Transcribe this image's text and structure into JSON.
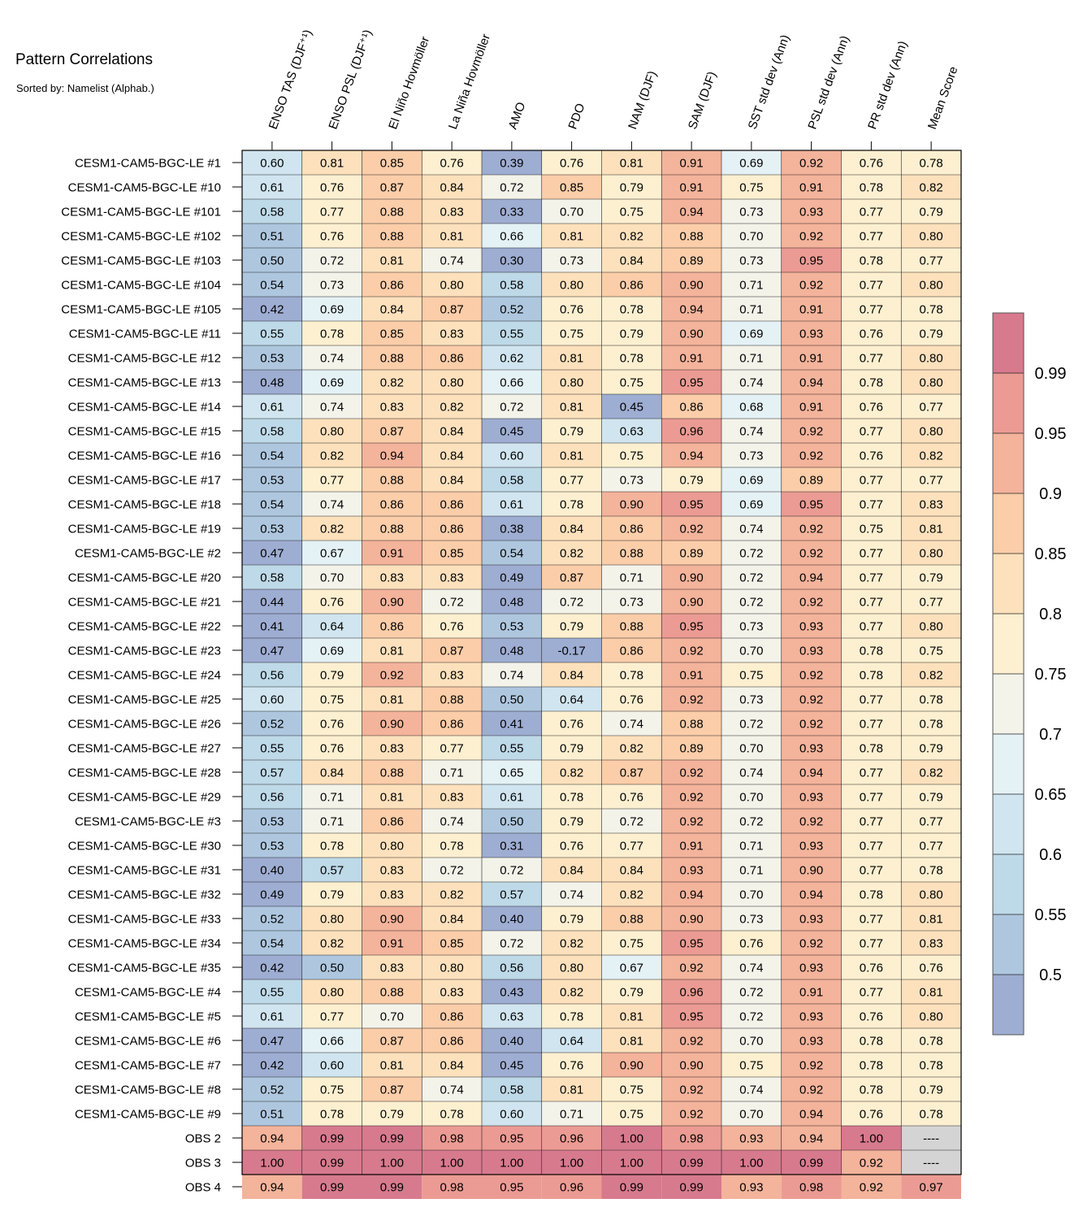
{
  "chart_data": {
    "type": "heatmap",
    "title": "Pattern Correlations",
    "subtitle": "Sorted by: Namelist (Alphab.)",
    "columns": [
      "ENSO TAS (DJF⁺¹)",
      "ENSO PSL (DJF⁺¹)",
      "El Niño Hovmöller",
      "La Niña Hovmöller",
      "AMO",
      "PDO",
      "NAM (DJF)",
      "SAM (DJF)",
      "SST std dev (Ann)",
      "PSL std dev (Ann)",
      "PR std dev (Ann)",
      "Mean Score"
    ],
    "rows": [
      "CESM1-CAM5-BGC-LE #1",
      "CESM1-CAM5-BGC-LE #10",
      "CESM1-CAM5-BGC-LE #101",
      "CESM1-CAM5-BGC-LE #102",
      "CESM1-CAM5-BGC-LE #103",
      "CESM1-CAM5-BGC-LE #104",
      "CESM1-CAM5-BGC-LE #105",
      "CESM1-CAM5-BGC-LE #11",
      "CESM1-CAM5-BGC-LE #12",
      "CESM1-CAM5-BGC-LE #13",
      "CESM1-CAM5-BGC-LE #14",
      "CESM1-CAM5-BGC-LE #15",
      "CESM1-CAM5-BGC-LE #16",
      "CESM1-CAM5-BGC-LE #17",
      "CESM1-CAM5-BGC-LE #18",
      "CESM1-CAM5-BGC-LE #19",
      "CESM1-CAM5-BGC-LE #2",
      "CESM1-CAM5-BGC-LE #20",
      "CESM1-CAM5-BGC-LE #21",
      "CESM1-CAM5-BGC-LE #22",
      "CESM1-CAM5-BGC-LE #23",
      "CESM1-CAM5-BGC-LE #24",
      "CESM1-CAM5-BGC-LE #25",
      "CESM1-CAM5-BGC-LE #26",
      "CESM1-CAM5-BGC-LE #27",
      "CESM1-CAM5-BGC-LE #28",
      "CESM1-CAM5-BGC-LE #29",
      "CESM1-CAM5-BGC-LE #3",
      "CESM1-CAM5-BGC-LE #30",
      "CESM1-CAM5-BGC-LE #31",
      "CESM1-CAM5-BGC-LE #32",
      "CESM1-CAM5-BGC-LE #33",
      "CESM1-CAM5-BGC-LE #34",
      "CESM1-CAM5-BGC-LE #35",
      "CESM1-CAM5-BGC-LE #4",
      "CESM1-CAM5-BGC-LE #5",
      "CESM1-CAM5-BGC-LE #6",
      "CESM1-CAM5-BGC-LE #7",
      "CESM1-CAM5-BGC-LE #8",
      "CESM1-CAM5-BGC-LE #9",
      "OBS 2",
      "OBS 3",
      "OBS 4"
    ],
    "values": [
      [
        "0.60",
        "0.81",
        "0.85",
        "0.76",
        "0.39",
        "0.76",
        "0.81",
        "0.91",
        "0.69",
        "0.92",
        "0.76",
        "0.78"
      ],
      [
        "0.61",
        "0.76",
        "0.87",
        "0.84",
        "0.72",
        "0.85",
        "0.79",
        "0.91",
        "0.75",
        "0.91",
        "0.78",
        "0.82"
      ],
      [
        "0.58",
        "0.77",
        "0.88",
        "0.83",
        "0.33",
        "0.70",
        "0.75",
        "0.94",
        "0.73",
        "0.93",
        "0.77",
        "0.79"
      ],
      [
        "0.51",
        "0.76",
        "0.88",
        "0.81",
        "0.66",
        "0.81",
        "0.82",
        "0.88",
        "0.70",
        "0.92",
        "0.77",
        "0.80"
      ],
      [
        "0.50",
        "0.72",
        "0.81",
        "0.74",
        "0.30",
        "0.73",
        "0.84",
        "0.89",
        "0.73",
        "0.95",
        "0.78",
        "0.77"
      ],
      [
        "0.54",
        "0.73",
        "0.86",
        "0.80",
        "0.58",
        "0.80",
        "0.86",
        "0.90",
        "0.71",
        "0.92",
        "0.77",
        "0.80"
      ],
      [
        "0.42",
        "0.69",
        "0.84",
        "0.87",
        "0.52",
        "0.76",
        "0.78",
        "0.94",
        "0.71",
        "0.91",
        "0.77",
        "0.78"
      ],
      [
        "0.55",
        "0.78",
        "0.85",
        "0.83",
        "0.55",
        "0.75",
        "0.79",
        "0.90",
        "0.69",
        "0.93",
        "0.76",
        "0.79"
      ],
      [
        "0.53",
        "0.74",
        "0.88",
        "0.86",
        "0.62",
        "0.81",
        "0.78",
        "0.91",
        "0.71",
        "0.91",
        "0.77",
        "0.80"
      ],
      [
        "0.48",
        "0.69",
        "0.82",
        "0.80",
        "0.66",
        "0.80",
        "0.75",
        "0.95",
        "0.74",
        "0.94",
        "0.78",
        "0.80"
      ],
      [
        "0.61",
        "0.74",
        "0.83",
        "0.82",
        "0.72",
        "0.81",
        "0.45",
        "0.86",
        "0.68",
        "0.91",
        "0.76",
        "0.77"
      ],
      [
        "0.58",
        "0.80",
        "0.87",
        "0.84",
        "0.45",
        "0.79",
        "0.63",
        "0.96",
        "0.74",
        "0.92",
        "0.77",
        "0.80"
      ],
      [
        "0.54",
        "0.82",
        "0.94",
        "0.84",
        "0.60",
        "0.81",
        "0.75",
        "0.94",
        "0.73",
        "0.92",
        "0.76",
        "0.82"
      ],
      [
        "0.53",
        "0.77",
        "0.88",
        "0.84",
        "0.58",
        "0.77",
        "0.73",
        "0.79",
        "0.69",
        "0.89",
        "0.77",
        "0.77"
      ],
      [
        "0.54",
        "0.74",
        "0.86",
        "0.86",
        "0.61",
        "0.78",
        "0.90",
        "0.95",
        "0.69",
        "0.95",
        "0.77",
        "0.83"
      ],
      [
        "0.53",
        "0.82",
        "0.88",
        "0.86",
        "0.38",
        "0.84",
        "0.86",
        "0.92",
        "0.74",
        "0.92",
        "0.75",
        "0.81"
      ],
      [
        "0.47",
        "0.67",
        "0.91",
        "0.85",
        "0.54",
        "0.82",
        "0.88",
        "0.89",
        "0.72",
        "0.92",
        "0.77",
        "0.80"
      ],
      [
        "0.58",
        "0.70",
        "0.83",
        "0.83",
        "0.49",
        "0.87",
        "0.71",
        "0.90",
        "0.72",
        "0.94",
        "0.77",
        "0.79"
      ],
      [
        "0.44",
        "0.76",
        "0.90",
        "0.72",
        "0.48",
        "0.72",
        "0.73",
        "0.90",
        "0.72",
        "0.92",
        "0.77",
        "0.77"
      ],
      [
        "0.41",
        "0.64",
        "0.86",
        "0.76",
        "0.53",
        "0.79",
        "0.88",
        "0.95",
        "0.73",
        "0.93",
        "0.77",
        "0.80"
      ],
      [
        "0.47",
        "0.69",
        "0.81",
        "0.87",
        "0.48",
        "-0.17",
        "0.86",
        "0.92",
        "0.70",
        "0.93",
        "0.78",
        "0.75"
      ],
      [
        "0.56",
        "0.79",
        "0.92",
        "0.83",
        "0.74",
        "0.84",
        "0.78",
        "0.91",
        "0.75",
        "0.92",
        "0.78",
        "0.82"
      ],
      [
        "0.60",
        "0.75",
        "0.81",
        "0.88",
        "0.50",
        "0.64",
        "0.76",
        "0.92",
        "0.73",
        "0.92",
        "0.77",
        "0.78"
      ],
      [
        "0.52",
        "0.76",
        "0.90",
        "0.86",
        "0.41",
        "0.76",
        "0.74",
        "0.88",
        "0.72",
        "0.92",
        "0.77",
        "0.78"
      ],
      [
        "0.55",
        "0.76",
        "0.83",
        "0.77",
        "0.55",
        "0.79",
        "0.82",
        "0.89",
        "0.70",
        "0.93",
        "0.78",
        "0.79"
      ],
      [
        "0.57",
        "0.84",
        "0.88",
        "0.71",
        "0.65",
        "0.82",
        "0.87",
        "0.92",
        "0.74",
        "0.94",
        "0.77",
        "0.82"
      ],
      [
        "0.56",
        "0.71",
        "0.81",
        "0.83",
        "0.61",
        "0.78",
        "0.76",
        "0.92",
        "0.70",
        "0.93",
        "0.77",
        "0.79"
      ],
      [
        "0.53",
        "0.71",
        "0.86",
        "0.74",
        "0.50",
        "0.79",
        "0.72",
        "0.92",
        "0.72",
        "0.92",
        "0.77",
        "0.77"
      ],
      [
        "0.53",
        "0.78",
        "0.80",
        "0.78",
        "0.31",
        "0.76",
        "0.77",
        "0.91",
        "0.71",
        "0.93",
        "0.77",
        "0.77"
      ],
      [
        "0.40",
        "0.57",
        "0.83",
        "0.72",
        "0.72",
        "0.84",
        "0.84",
        "0.93",
        "0.71",
        "0.90",
        "0.77",
        "0.78"
      ],
      [
        "0.49",
        "0.79",
        "0.83",
        "0.82",
        "0.57",
        "0.74",
        "0.82",
        "0.94",
        "0.70",
        "0.94",
        "0.78",
        "0.80"
      ],
      [
        "0.52",
        "0.80",
        "0.90",
        "0.84",
        "0.40",
        "0.79",
        "0.88",
        "0.90",
        "0.73",
        "0.93",
        "0.77",
        "0.81"
      ],
      [
        "0.54",
        "0.82",
        "0.91",
        "0.85",
        "0.72",
        "0.82",
        "0.75",
        "0.95",
        "0.76",
        "0.92",
        "0.77",
        "0.83"
      ],
      [
        "0.42",
        "0.50",
        "0.83",
        "0.80",
        "0.56",
        "0.80",
        "0.67",
        "0.92",
        "0.74",
        "0.93",
        "0.76",
        "0.76"
      ],
      [
        "0.55",
        "0.80",
        "0.88",
        "0.83",
        "0.43",
        "0.82",
        "0.79",
        "0.96",
        "0.72",
        "0.91",
        "0.77",
        "0.81"
      ],
      [
        "0.61",
        "0.77",
        "0.70",
        "0.86",
        "0.63",
        "0.78",
        "0.81",
        "0.95",
        "0.72",
        "0.93",
        "0.76",
        "0.80"
      ],
      [
        "0.47",
        "0.66",
        "0.87",
        "0.86",
        "0.40",
        "0.64",
        "0.81",
        "0.92",
        "0.70",
        "0.93",
        "0.78",
        "0.78"
      ],
      [
        "0.42",
        "0.60",
        "0.81",
        "0.84",
        "0.45",
        "0.76",
        "0.90",
        "0.90",
        "0.75",
        "0.92",
        "0.78",
        "0.78"
      ],
      [
        "0.52",
        "0.75",
        "0.87",
        "0.74",
        "0.58",
        "0.81",
        "0.75",
        "0.92",
        "0.74",
        "0.92",
        "0.78",
        "0.79"
      ],
      [
        "0.51",
        "0.78",
        "0.79",
        "0.78",
        "0.60",
        "0.71",
        "0.75",
        "0.92",
        "0.70",
        "0.94",
        "0.76",
        "0.78"
      ],
      [
        "0.94",
        "0.99",
        "0.99",
        "0.98",
        "0.95",
        "0.96",
        "1.00",
        "0.98",
        "0.93",
        "0.94",
        "1.00",
        "----"
      ],
      [
        "1.00",
        "0.99",
        "1.00",
        "1.00",
        "1.00",
        "1.00",
        "1.00",
        "0.99",
        "1.00",
        "0.99",
        "0.92",
        "----"
      ],
      [
        "0.94",
        "0.99",
        "0.99",
        "0.98",
        "0.95",
        "0.96",
        "0.99",
        "0.99",
        "0.93",
        "0.98",
        "0.92",
        "0.97"
      ]
    ],
    "colorbar": {
      "levels": [
        0.5,
        0.55,
        0.6,
        0.65,
        0.7,
        0.75,
        0.8,
        0.85,
        0.9,
        0.95,
        0.99
      ],
      "labels": [
        "0.5",
        "0.55",
        "0.6",
        "0.65",
        "0.7",
        "0.75",
        "0.8",
        "0.85",
        "0.9",
        "0.95",
        "0.99"
      ],
      "colors": [
        "#9eadd2",
        "#aec7df",
        "#bed9e8",
        "#d0e5ef",
        "#e4f1f5",
        "#f3f3ea",
        "#fdf0d0",
        "#fde1bc",
        "#fbcda9",
        "#f4b39b",
        "#eb9b93",
        "#d77a8e"
      ],
      "missing_color": "#d4d4d4"
    }
  }
}
